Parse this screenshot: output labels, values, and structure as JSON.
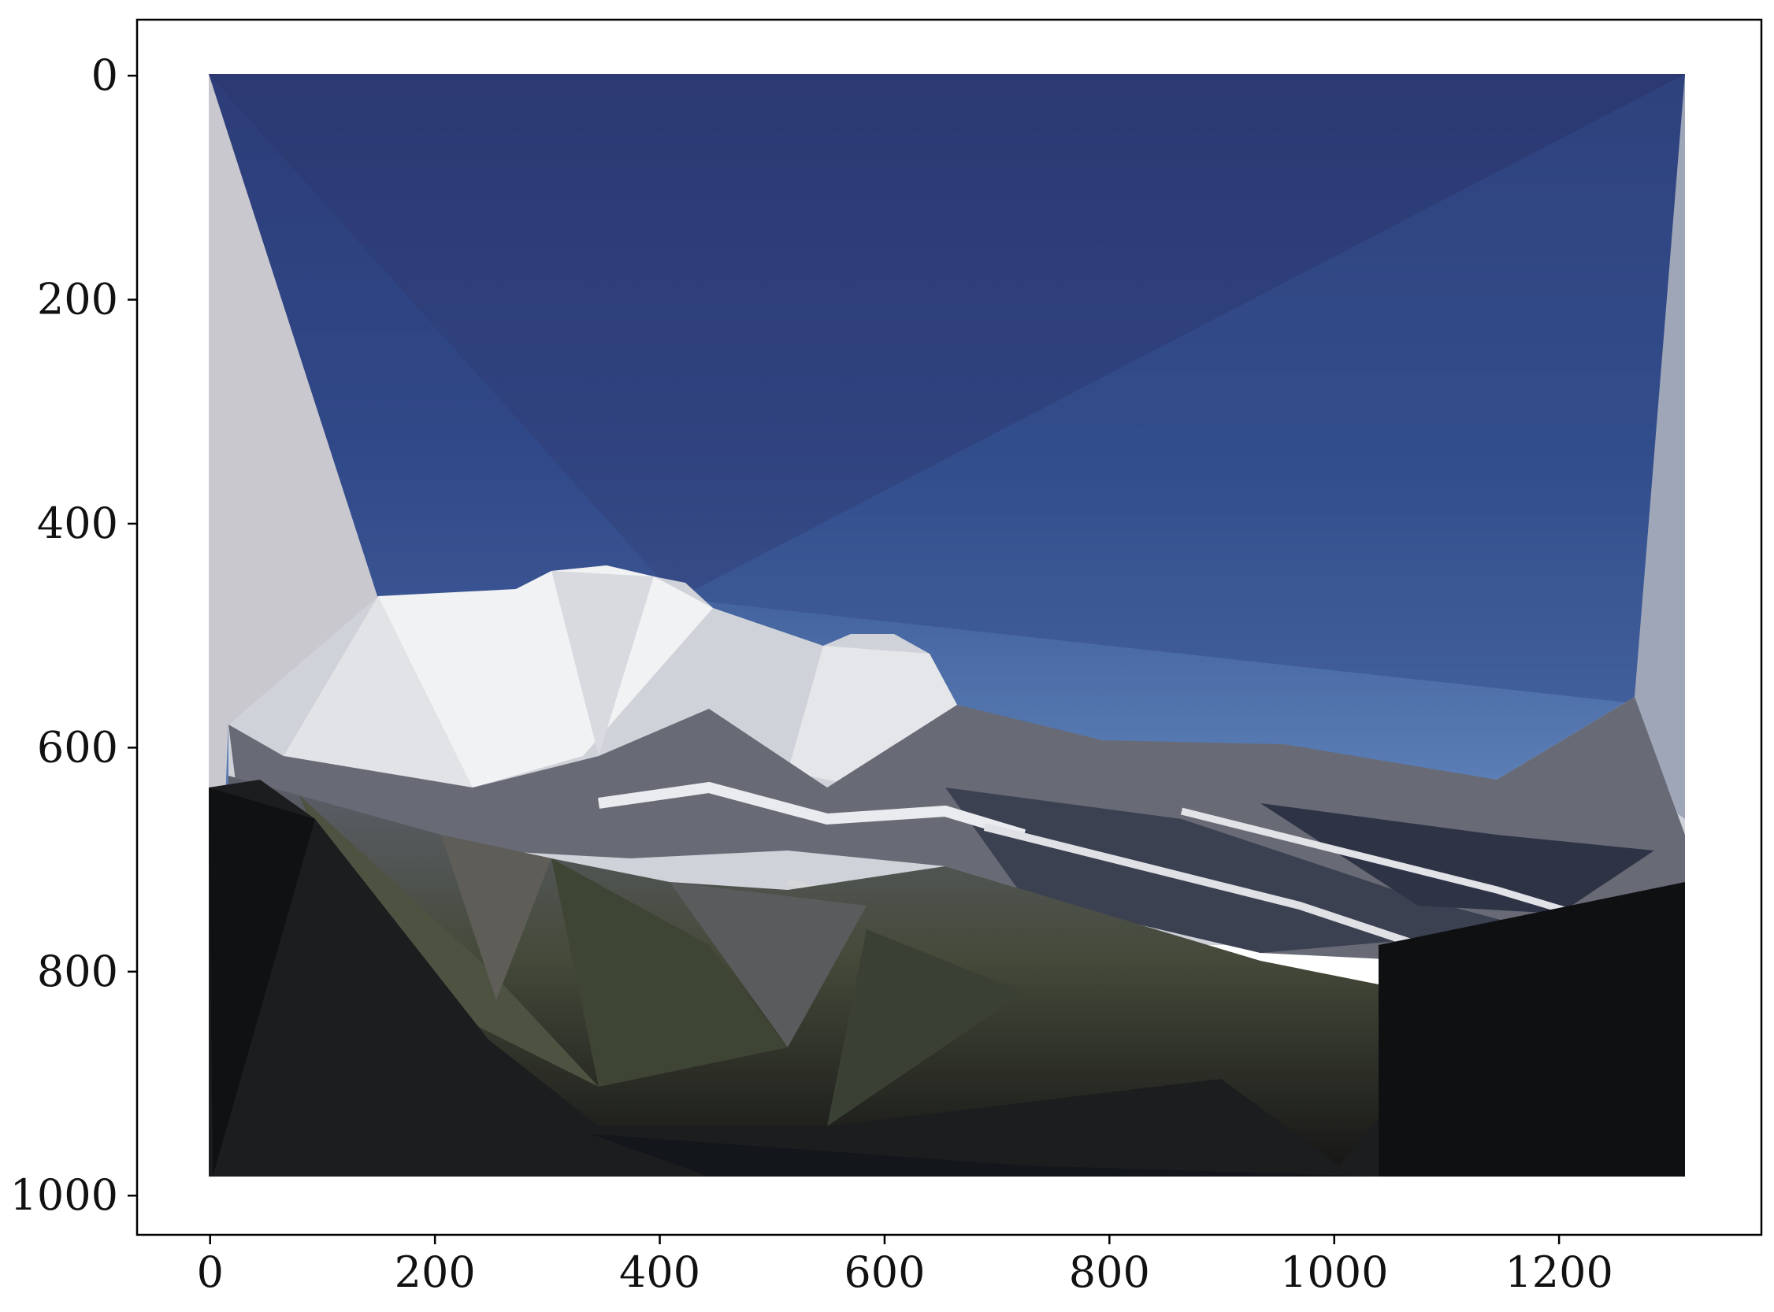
{
  "image": {
    "subject": "low-poly triangulated mountain landscape",
    "colors": {
      "sky_top": "#2b3870",
      "sky_mid": "#34508f",
      "sky_horizon": "#5b7fb6",
      "side_panel_left": "#c9c8cf",
      "side_panel_right": "#9fa6b8",
      "snow_bright": "#f1f2f4",
      "snow_shadow": "#cfd2d8",
      "rock_mid": "#5c5f6a",
      "rock_dark": "#2a2d38",
      "foliage": "#454a3a",
      "foreground_dark": "#151515"
    }
  },
  "axes": {
    "xlim": [
      -65,
      1380
    ],
    "ylim": [
      1035,
      -50
    ],
    "x_ticks": [
      {
        "value": 0,
        "label": "0"
      },
      {
        "value": 200,
        "label": "200"
      },
      {
        "value": 400,
        "label": "400"
      },
      {
        "value": 600,
        "label": "600"
      },
      {
        "value": 800,
        "label": "800"
      },
      {
        "value": 1000,
        "label": "1000"
      },
      {
        "value": 1200,
        "label": "1200"
      }
    ],
    "y_ticks": [
      {
        "value": 0,
        "label": "0"
      },
      {
        "value": 200,
        "label": "200"
      },
      {
        "value": 400,
        "label": "400"
      },
      {
        "value": 600,
        "label": "600"
      },
      {
        "value": 800,
        "label": "800"
      },
      {
        "value": 1000,
        "label": "1000"
      }
    ]
  }
}
